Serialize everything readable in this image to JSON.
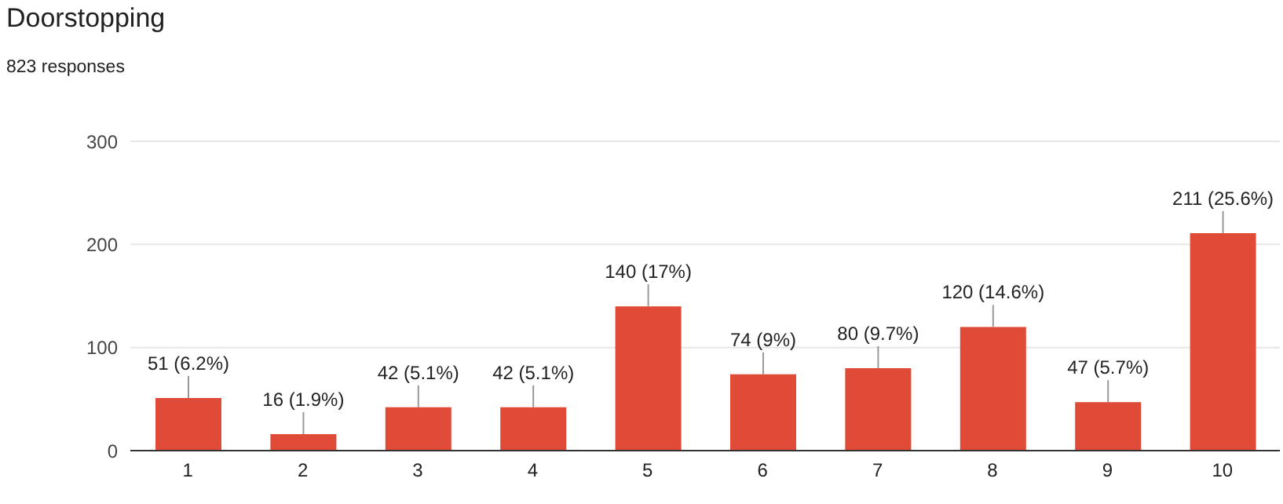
{
  "chart_data": {
    "type": "bar",
    "title": "Doorstopping",
    "subtitle": "823 responses",
    "categories": [
      "1",
      "2",
      "3",
      "4",
      "5",
      "6",
      "7",
      "8",
      "9",
      "10"
    ],
    "values": [
      51,
      16,
      42,
      42,
      140,
      74,
      80,
      120,
      47,
      211
    ],
    "value_labels": [
      "51 (6.2%)",
      "16 (1.9%)",
      "42 (5.1%)",
      "42 (5.1%)",
      "140 (17%)",
      "74 (9%)",
      "80 (9.7%)",
      "120 (14.6%)",
      "47 (5.7%)",
      "211 (25.6%)"
    ],
    "color": "#e04b37",
    "ylim": [
      0,
      300
    ],
    "yticks": [
      0,
      100,
      200,
      300
    ],
    "grid": "y"
  }
}
